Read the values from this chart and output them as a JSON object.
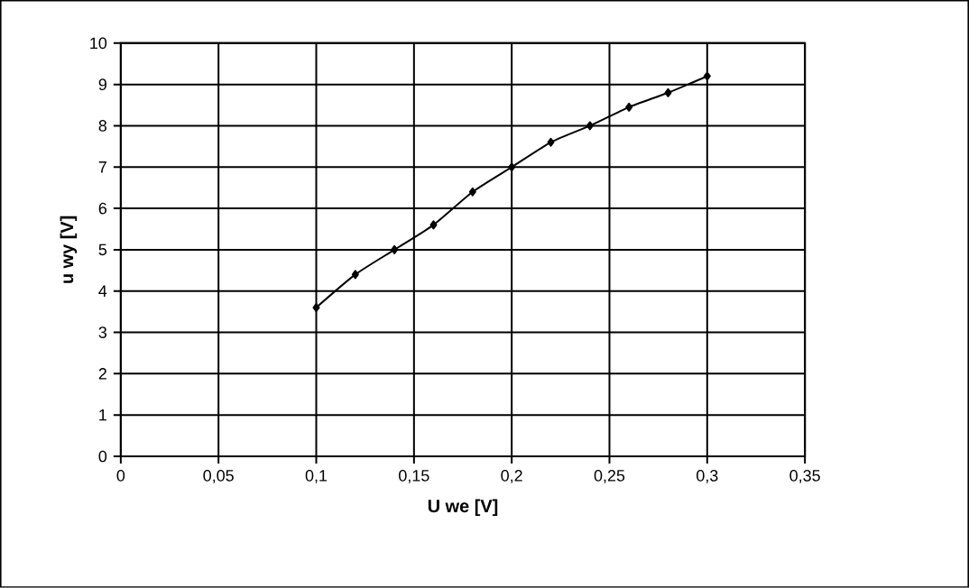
{
  "chart_data": {
    "type": "line",
    "xlabel": "U we [V]",
    "ylabel": "u wy [V]",
    "x": [
      0.1,
      0.12,
      0.14,
      0.16,
      0.18,
      0.2,
      0.22,
      0.24,
      0.26,
      0.28,
      0.3
    ],
    "series": [
      {
        "color": "#000000",
        "values": [
          3.6,
          4.4,
          5.0,
          5.6,
          6.4,
          7.0,
          7.6,
          8.0,
          8.45,
          8.8,
          9.2
        ]
      }
    ],
    "xlim": [
      0,
      0.35
    ],
    "xticks": [
      0,
      {
        "value": 0.05,
        "label": "0,05"
      },
      {
        "value": 0.1,
        "label": "0,1"
      },
      {
        "value": 0.15,
        "label": "0,15"
      },
      {
        "value": 0.2,
        "label": "0,2"
      },
      {
        "value": 0.25,
        "label": "0,25"
      },
      {
        "value": 0.3,
        "label": "0,3"
      },
      {
        "value": 0.35,
        "label": "0,35"
      }
    ],
    "ylim": [
      0,
      10
    ],
    "yticks": [
      0,
      1,
      2,
      3,
      4,
      5,
      6,
      7,
      8,
      9,
      10
    ],
    "grid": true,
    "marker": "diamond",
    "line_style": "solid"
  }
}
